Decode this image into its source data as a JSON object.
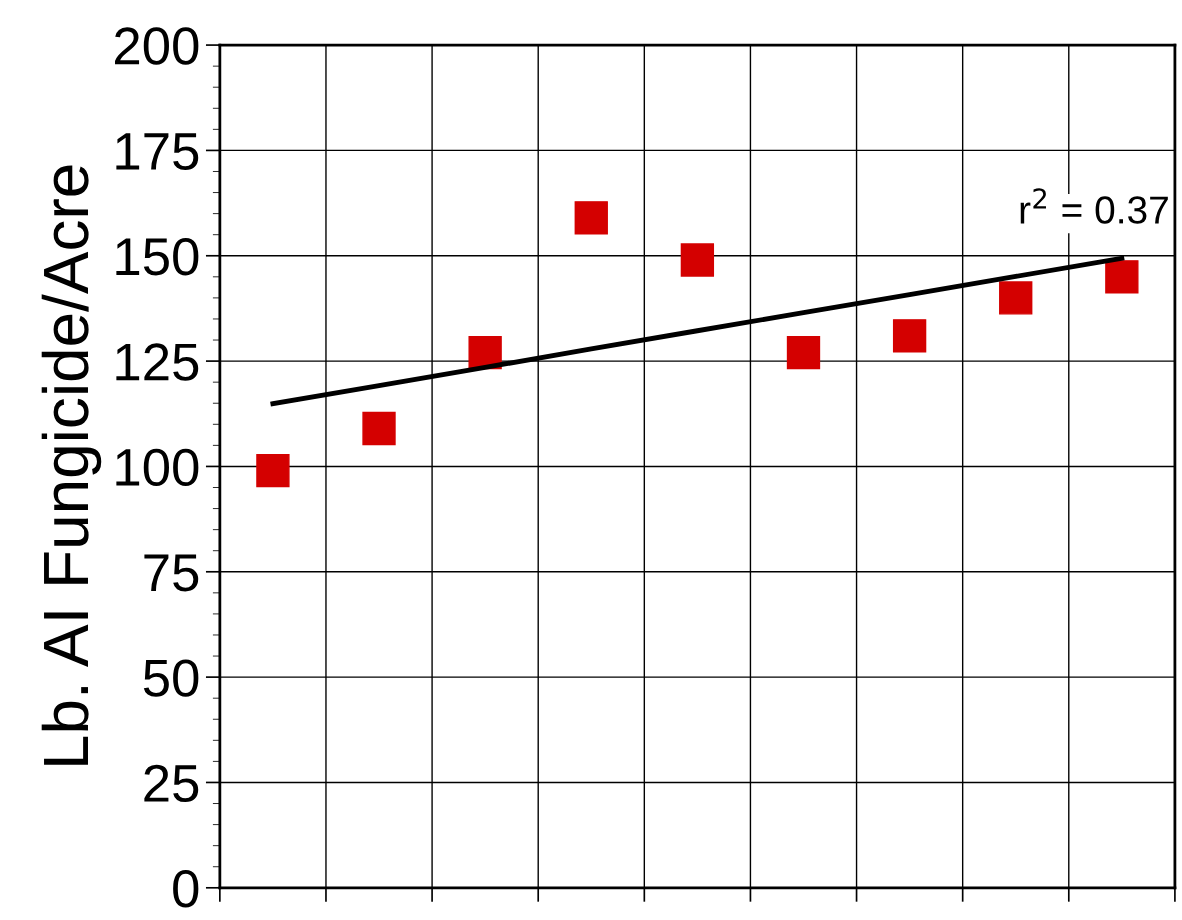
{
  "chart_data": {
    "type": "scatter",
    "ylabel": "Lb. AI Fungicide/Acre",
    "categories": [
      null,
      null,
      null,
      null,
      null,
      null,
      null,
      null,
      null
    ],
    "series": [
      {
        "color": "#d40000",
        "marker": "square",
        "values": [
          99,
          109,
          127,
          159,
          149,
          127,
          131,
          140,
          145
        ]
      },
      {
        "type": "line",
        "color": "#000000",
        "marker": "none",
        "line_style": "solid",
        "values": [
          114.9,
          119.2,
          123.5,
          127.9,
          132.2,
          136.5,
          140.8,
          145.1,
          149.4
        ]
      }
    ],
    "ylim": [
      0,
      200
    ],
    "yticks": [
      0,
      25,
      50,
      75,
      100,
      125,
      150,
      175,
      200
    ],
    "tick_labels": "y",
    "grid": true,
    "annotations": [
      "r$^{2}$ = 0.37"
    ]
  }
}
